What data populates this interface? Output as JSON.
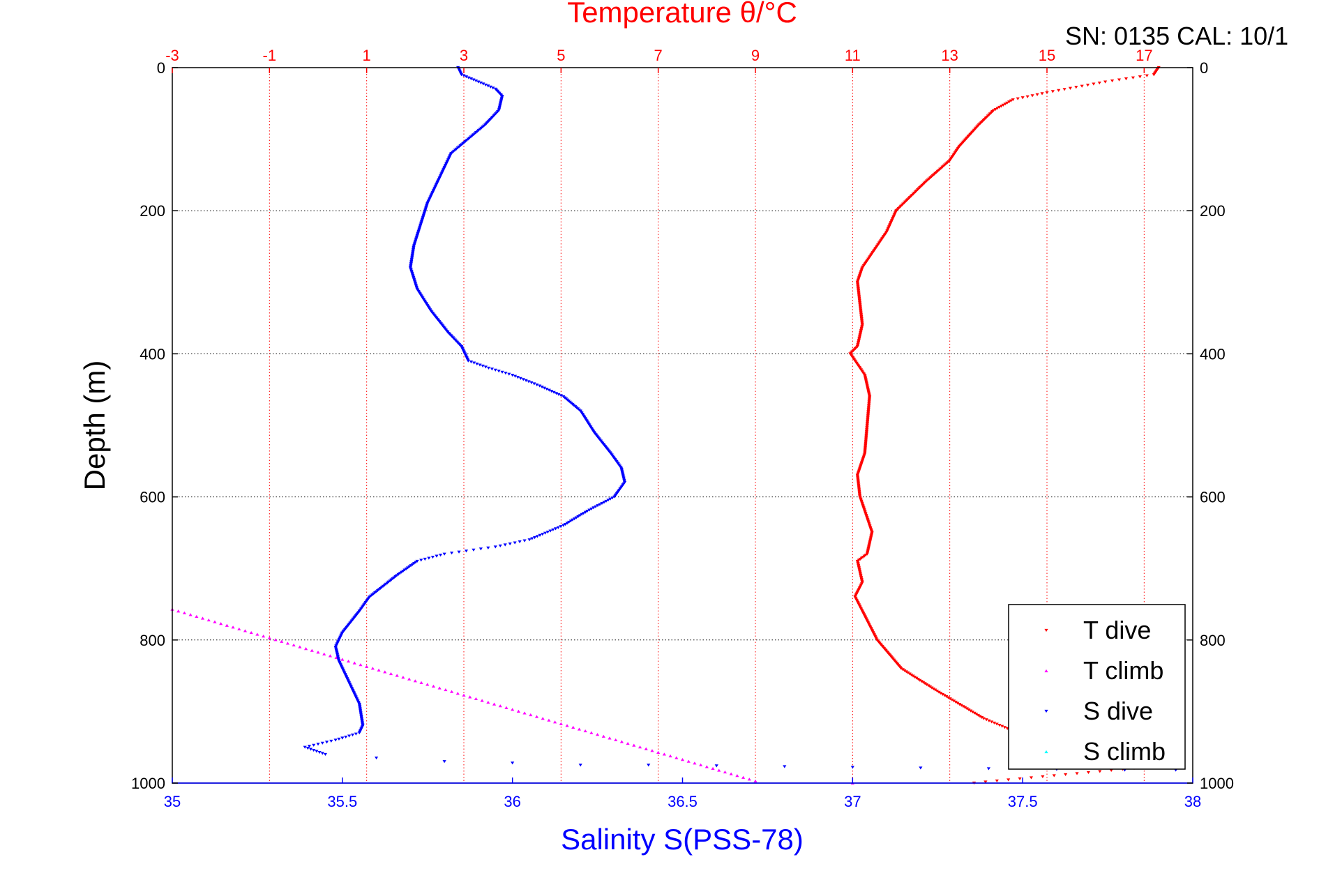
{
  "chart_data": {
    "type": "scatter",
    "annotation": "SN: 0135  CAL: 10/1",
    "x_top": {
      "label": "Temperature θ/°C",
      "range": [
        -3,
        18
      ],
      "ticks": [
        -3,
        -1,
        1,
        3,
        5,
        7,
        9,
        11,
        13,
        15,
        17
      ],
      "color": "#ff0000"
    },
    "x_bottom": {
      "label": "Salinity S(PSS-78)",
      "range": [
        35,
        38
      ],
      "ticks": [
        35,
        35.5,
        36,
        36.5,
        37,
        37.5,
        38
      ],
      "color": "#0000ff"
    },
    "y": {
      "label": "Depth (m)",
      "range": [
        0,
        1000
      ],
      "reversed": true,
      "ticks": [
        0,
        200,
        400,
        600,
        800,
        1000
      ]
    },
    "grid": true,
    "legend_position": "bottom-right",
    "series": [
      {
        "name": "T dive",
        "axis": "temperature",
        "color": "#ff0000",
        "marker": "triangle-down",
        "points": [
          [
            17.3,
            0
          ],
          [
            17.2,
            10
          ],
          [
            16.2,
            20
          ],
          [
            15.0,
            35
          ],
          [
            14.3,
            45
          ],
          [
            13.9,
            60
          ],
          [
            13.6,
            80
          ],
          [
            13.2,
            110
          ],
          [
            13.0,
            130
          ],
          [
            12.5,
            160
          ],
          [
            12.2,
            180
          ],
          [
            11.9,
            200
          ],
          [
            11.7,
            230
          ],
          [
            11.4,
            260
          ],
          [
            11.2,
            280
          ],
          [
            11.1,
            300
          ],
          [
            11.15,
            330
          ],
          [
            11.2,
            360
          ],
          [
            11.1,
            390
          ],
          [
            10.95,
            400
          ],
          [
            11.05,
            410
          ],
          [
            11.25,
            430
          ],
          [
            11.35,
            460
          ],
          [
            11.3,
            500
          ],
          [
            11.25,
            540
          ],
          [
            11.1,
            570
          ],
          [
            11.15,
            600
          ],
          [
            11.4,
            650
          ],
          [
            11.3,
            680
          ],
          [
            11.1,
            690
          ],
          [
            11.2,
            720
          ],
          [
            11.05,
            740
          ],
          [
            11.2,
            760
          ],
          [
            11.5,
            800
          ],
          [
            12.0,
            840
          ],
          [
            12.7,
            870
          ],
          [
            13.2,
            890
          ],
          [
            13.7,
            910
          ],
          [
            14.4,
            930
          ],
          [
            15.5,
            950
          ],
          [
            16.5,
            960
          ],
          [
            17.5,
            975
          ],
          [
            13.5,
            1000
          ]
        ]
      },
      {
        "name": "T climb",
        "axis": "temperature",
        "color": "#ff00ff",
        "marker": "triangle-up",
        "points": [
          [
            -3,
            757
          ],
          [
            0,
            817
          ],
          [
            3,
            877
          ],
          [
            6,
            937
          ],
          [
            9,
            997
          ],
          [
            11,
            1000
          ]
        ]
      },
      {
        "name": "S dive",
        "axis": "salinity",
        "color": "#0000ff",
        "marker": "triangle-down",
        "points": [
          [
            35.84,
            0
          ],
          [
            35.85,
            10
          ],
          [
            35.9,
            20
          ],
          [
            35.95,
            30
          ],
          [
            35.97,
            40
          ],
          [
            35.96,
            60
          ],
          [
            35.92,
            80
          ],
          [
            35.87,
            100
          ],
          [
            35.82,
            120
          ],
          [
            35.79,
            150
          ],
          [
            35.77,
            170
          ],
          [
            35.75,
            190
          ],
          [
            35.73,
            220
          ],
          [
            35.71,
            250
          ],
          [
            35.7,
            280
          ],
          [
            35.72,
            310
          ],
          [
            35.76,
            340
          ],
          [
            35.81,
            370
          ],
          [
            35.85,
            390
          ],
          [
            35.86,
            400
          ],
          [
            35.87,
            410
          ],
          [
            35.93,
            420
          ],
          [
            36.0,
            430
          ],
          [
            36.08,
            445
          ],
          [
            36.15,
            460
          ],
          [
            36.2,
            480
          ],
          [
            36.24,
            510
          ],
          [
            36.29,
            540
          ],
          [
            36.32,
            560
          ],
          [
            36.33,
            580
          ],
          [
            36.3,
            600
          ],
          [
            36.22,
            620
          ],
          [
            36.15,
            640
          ],
          [
            36.05,
            660
          ],
          [
            35.95,
            670
          ],
          [
            35.8,
            680
          ],
          [
            35.72,
            690
          ],
          [
            35.66,
            710
          ],
          [
            35.62,
            725
          ],
          [
            35.58,
            740
          ],
          [
            35.55,
            760
          ],
          [
            35.5,
            790
          ],
          [
            35.48,
            810
          ],
          [
            35.49,
            830
          ],
          [
            35.52,
            860
          ],
          [
            35.55,
            890
          ],
          [
            35.56,
            920
          ],
          [
            35.55,
            930
          ],
          [
            35.48,
            940
          ],
          [
            35.39,
            950
          ],
          [
            35.45,
            960
          ],
          [
            35.6,
            965
          ],
          [
            35.8,
            970
          ],
          [
            36.0,
            972
          ],
          [
            36.2,
            975
          ],
          [
            36.4,
            975
          ],
          [
            36.6,
            976
          ],
          [
            36.8,
            977
          ],
          [
            37.0,
            978
          ],
          [
            37.2,
            979
          ],
          [
            37.4,
            980
          ],
          [
            37.6,
            981
          ],
          [
            37.8,
            982
          ],
          [
            37.95,
            982
          ]
        ]
      },
      {
        "name": "S climb",
        "axis": "salinity",
        "color": "#00ffff",
        "marker": "triangle-up",
        "points": []
      }
    ]
  }
}
